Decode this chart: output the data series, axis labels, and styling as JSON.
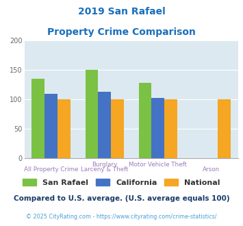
{
  "title_line1": "2019 San Rafael",
  "title_line2": "Property Crime Comparison",
  "cat_labels_row1": [
    "",
    "Burglary",
    "Motor Vehicle Theft",
    ""
  ],
  "cat_labels_row2": [
    "All Property Crime",
    "Larceny & Theft",
    "",
    "Arson"
  ],
  "san_rafael": [
    135,
    150,
    128,
    null
  ],
  "california": [
    110,
    113,
    103,
    null
  ],
  "national": [
    100,
    100,
    100,
    100
  ],
  "bar_color_sr": "#7bc143",
  "bar_color_ca": "#4472c4",
  "bar_color_nat": "#f5a623",
  "background_color": "#dce9f0",
  "ylim": [
    0,
    200
  ],
  "yticks": [
    0,
    50,
    100,
    150,
    200
  ],
  "title_color": "#1a6fbd",
  "xlabel_color_row1": "#9b7db8",
  "xlabel_color_row2": "#9b7db8",
  "footer_note": "Compared to U.S. average. (U.S. average equals 100)",
  "footer_note_color": "#1a3a6b",
  "footer_copy": "© 2025 CityRating.com - https://www.cityrating.com/crime-statistics/",
  "footer_copy_color": "#4a9fd4",
  "legend_labels": [
    "San Rafael",
    "California",
    "National"
  ],
  "legend_text_color": "#333333"
}
